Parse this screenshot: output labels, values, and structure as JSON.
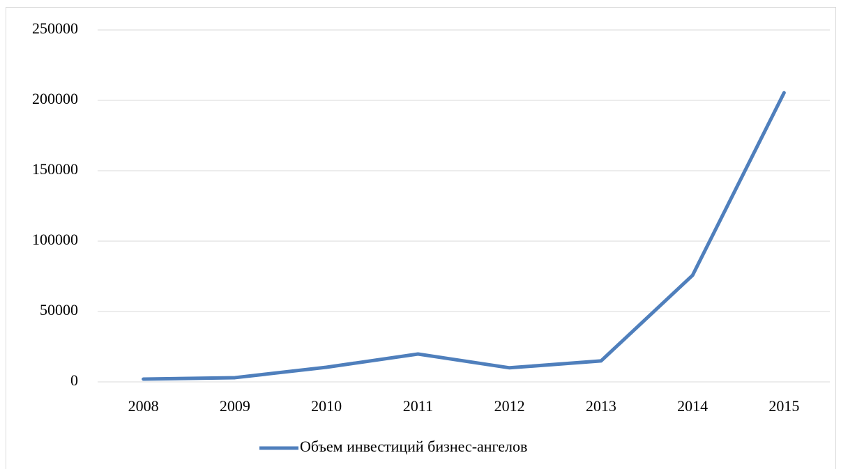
{
  "chart_data": {
    "type": "line",
    "categories": [
      "2008",
      "2009",
      "2010",
      "2011",
      "2012",
      "2013",
      "2014",
      "2015"
    ],
    "series": [
      {
        "name": "Объем инвестиций бизнес-ангелов",
        "color": "#4f7fbc",
        "values": [
          2000,
          3000,
          10400,
          19800,
          10000,
          14900,
          75700,
          205400
        ]
      }
    ],
    "ylim": [
      0,
      250000
    ],
    "yticks": [
      0,
      50000,
      100000,
      150000,
      200000,
      250000
    ],
    "grid": true,
    "legend": "bottom"
  }
}
